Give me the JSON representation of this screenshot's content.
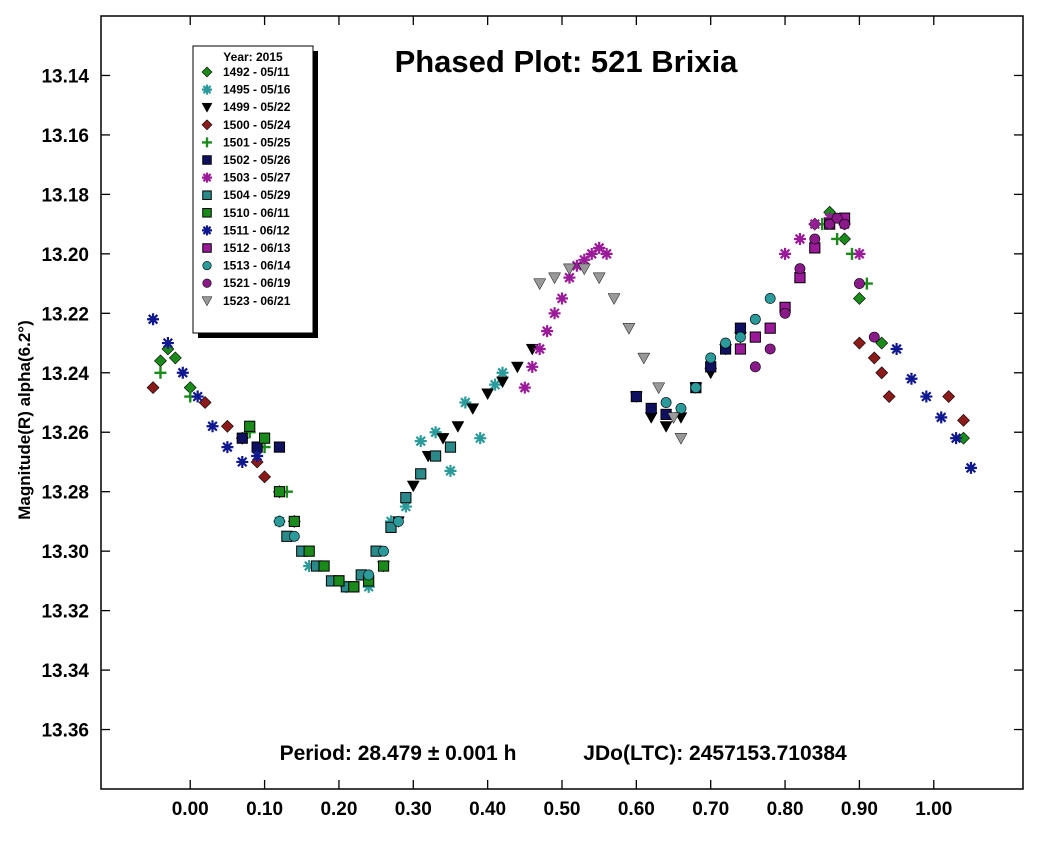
{
  "chart_data": {
    "type": "scatter",
    "title": "Phased Plot: 521 Brixia",
    "ylabel": "Magnitude(R) alpha(6.2°)",
    "xlabel": "",
    "xlim": [
      -0.12,
      1.12
    ],
    "ylim": [
      13.12,
      13.38
    ],
    "y_inverted": true,
    "x_ticks": [
      "0.00",
      "0.10",
      "0.20",
      "0.30",
      "0.40",
      "0.50",
      "0.60",
      "0.70",
      "0.80",
      "0.90",
      "1.00"
    ],
    "y_ticks": [
      "13.14",
      "13.16",
      "13.18",
      "13.20",
      "13.22",
      "13.24",
      "13.26",
      "13.28",
      "13.30",
      "13.32",
      "13.34",
      "13.36"
    ],
    "period_text": "Period: 28.479 ± 0.001 h",
    "epoch_text": "JDo(LTC): 2457153.710384",
    "legend": {
      "position": "top-left",
      "header": "Year: 2015",
      "entries": [
        {
          "label": "1492 - 05/11",
          "marker": "diamond",
          "color": "#1a8a1a"
        },
        {
          "label": "1495 - 05/16",
          "marker": "asterisk",
          "color": "#2a9a9a"
        },
        {
          "label": "1499 - 05/22",
          "marker": "triangle-down",
          "color": "#000000"
        },
        {
          "label": "1500 - 05/24",
          "marker": "diamond",
          "color": "#8b1a1a"
        },
        {
          "label": "1501 - 05/25",
          "marker": "plus",
          "color": "#1a8a1a"
        },
        {
          "label": "1502 - 05/26",
          "marker": "square",
          "color": "#101060"
        },
        {
          "label": "1503 - 05/27",
          "marker": "asterisk",
          "color": "#9a1a9a"
        },
        {
          "label": "1504 - 05/29",
          "marker": "square",
          "color": "#2a8a8a"
        },
        {
          "label": "1510 - 06/11",
          "marker": "square",
          "color": "#1a8a1a"
        },
        {
          "label": "1511 - 06/12",
          "marker": "asterisk",
          "color": "#101890"
        },
        {
          "label": "1512 - 06/13",
          "marker": "square",
          "color": "#9a1a9a"
        },
        {
          "label": "1513 - 06/14",
          "marker": "circle",
          "color": "#2a9a9a"
        },
        {
          "label": "1521 - 06/19",
          "marker": "circle",
          "color": "#8a1a8a"
        },
        {
          "label": "1523 - 06/21",
          "marker": "triangle-down",
          "color": "#999999"
        }
      ]
    },
    "series": [
      {
        "name": "1492 - 05/11",
        "x": [
          -0.04,
          -0.03,
          -0.02,
          0.0,
          0.84,
          0.86,
          0.88,
          0.9,
          0.93,
          1.04
        ],
        "y": [
          13.236,
          13.232,
          13.235,
          13.245,
          13.19,
          13.186,
          13.195,
          13.215,
          13.23,
          13.262
        ]
      },
      {
        "name": "1495 - 05/16",
        "x": [
          0.12,
          0.16,
          0.21,
          0.24,
          0.27,
          0.29,
          0.31,
          0.33,
          0.35,
          0.37,
          0.39,
          0.41,
          0.42
        ],
        "y": [
          13.29,
          13.305,
          13.312,
          13.312,
          13.29,
          13.285,
          13.263,
          13.26,
          13.273,
          13.25,
          13.262,
          13.244,
          13.24
        ]
      },
      {
        "name": "1499 - 05/22",
        "x": [
          0.26,
          0.28,
          0.3,
          0.32,
          0.34,
          0.36,
          0.38,
          0.4,
          0.42,
          0.44,
          0.46,
          0.6,
          0.62,
          0.64,
          0.66,
          0.68,
          0.7,
          0.72,
          0.74
        ],
        "y": [
          13.305,
          13.29,
          13.278,
          13.268,
          13.262,
          13.258,
          13.252,
          13.247,
          13.243,
          13.238,
          13.232,
          13.248,
          13.255,
          13.258,
          13.255,
          13.245,
          13.24,
          13.232,
          13.228
        ]
      },
      {
        "name": "1500 - 05/24",
        "x": [
          -0.05,
          0.02,
          0.05,
          0.07,
          0.09,
          0.1,
          0.12,
          0.14,
          0.9,
          0.92,
          0.93,
          0.94,
          1.02,
          1.04
        ],
        "y": [
          13.245,
          13.25,
          13.258,
          13.262,
          13.27,
          13.275,
          13.28,
          13.29,
          13.23,
          13.235,
          13.24,
          13.248,
          13.248,
          13.256
        ]
      },
      {
        "name": "1501 - 05/25",
        "x": [
          -0.04,
          0.0,
          0.08,
          0.1,
          0.13,
          0.85,
          0.87,
          0.89,
          0.91
        ],
        "y": [
          13.24,
          13.248,
          13.26,
          13.265,
          13.28,
          13.19,
          13.195,
          13.2,
          13.21
        ]
      },
      {
        "name": "1502 - 05/26",
        "x": [
          0.07,
          0.09,
          0.12,
          0.2,
          0.22,
          0.6,
          0.62,
          0.64,
          0.68,
          0.7,
          0.72,
          0.74
        ],
        "y": [
          13.262,
          13.265,
          13.265,
          13.31,
          13.312,
          13.248,
          13.252,
          13.254,
          13.245,
          13.238,
          13.232,
          13.225
        ]
      },
      {
        "name": "1503 - 05/27",
        "x": [
          0.45,
          0.46,
          0.47,
          0.48,
          0.49,
          0.5,
          0.51,
          0.52,
          0.53,
          0.54,
          0.55,
          0.56,
          0.8,
          0.82,
          0.84,
          0.86,
          0.88,
          0.9
        ],
        "y": [
          13.245,
          13.238,
          13.232,
          13.226,
          13.22,
          13.215,
          13.208,
          13.204,
          13.202,
          13.2,
          13.198,
          13.2,
          13.2,
          13.195,
          13.19,
          13.188,
          13.19,
          13.2
        ]
      },
      {
        "name": "1504 - 05/29",
        "x": [
          0.13,
          0.15,
          0.17,
          0.19,
          0.21,
          0.23,
          0.25,
          0.27,
          0.29,
          0.31,
          0.33,
          0.35
        ],
        "y": [
          13.295,
          13.3,
          13.305,
          13.31,
          13.312,
          13.308,
          13.3,
          13.292,
          13.282,
          13.274,
          13.268,
          13.265
        ]
      },
      {
        "name": "1510 - 06/11",
        "x": [
          0.08,
          0.1,
          0.12,
          0.14,
          0.16,
          0.18,
          0.2,
          0.22,
          0.24,
          0.26
        ],
        "y": [
          13.258,
          13.262,
          13.28,
          13.29,
          13.3,
          13.305,
          13.31,
          13.312,
          13.31,
          13.305
        ]
      },
      {
        "name": "1511 - 06/12",
        "x": [
          -0.05,
          -0.03,
          -0.01,
          0.01,
          0.03,
          0.05,
          0.07,
          0.09,
          0.95,
          0.97,
          0.99,
          1.01,
          1.03,
          1.05
        ],
        "y": [
          13.222,
          13.23,
          13.24,
          13.248,
          13.258,
          13.265,
          13.27,
          13.268,
          13.232,
          13.242,
          13.248,
          13.255,
          13.262,
          13.272
        ]
      },
      {
        "name": "1512 - 06/13",
        "x": [
          0.74,
          0.76,
          0.78,
          0.8,
          0.82,
          0.84,
          0.86,
          0.88
        ],
        "y": [
          13.232,
          13.228,
          13.225,
          13.218,
          13.208,
          13.198,
          13.19,
          13.188
        ]
      },
      {
        "name": "1513 - 06/14",
        "x": [
          0.12,
          0.14,
          0.24,
          0.26,
          0.28,
          0.64,
          0.66,
          0.68,
          0.7,
          0.72,
          0.74,
          0.76,
          0.78
        ],
        "y": [
          13.29,
          13.295,
          13.308,
          13.3,
          13.29,
          13.25,
          13.252,
          13.245,
          13.235,
          13.23,
          13.228,
          13.222,
          13.215
        ]
      },
      {
        "name": "1521 - 06/19",
        "x": [
          0.76,
          0.78,
          0.8,
          0.82,
          0.84,
          0.86,
          0.87,
          0.88,
          0.9,
          0.92
        ],
        "y": [
          13.238,
          13.232,
          13.22,
          13.205,
          13.195,
          13.19,
          13.188,
          13.19,
          13.21,
          13.228
        ]
      },
      {
        "name": "1523 - 06/21",
        "x": [
          0.47,
          0.49,
          0.51,
          0.53,
          0.55,
          0.57,
          0.59,
          0.61,
          0.63,
          0.65,
          0.66
        ],
        "y": [
          13.21,
          13.208,
          13.205,
          13.205,
          13.208,
          13.215,
          13.225,
          13.235,
          13.245,
          13.255,
          13.262
        ]
      }
    ]
  }
}
